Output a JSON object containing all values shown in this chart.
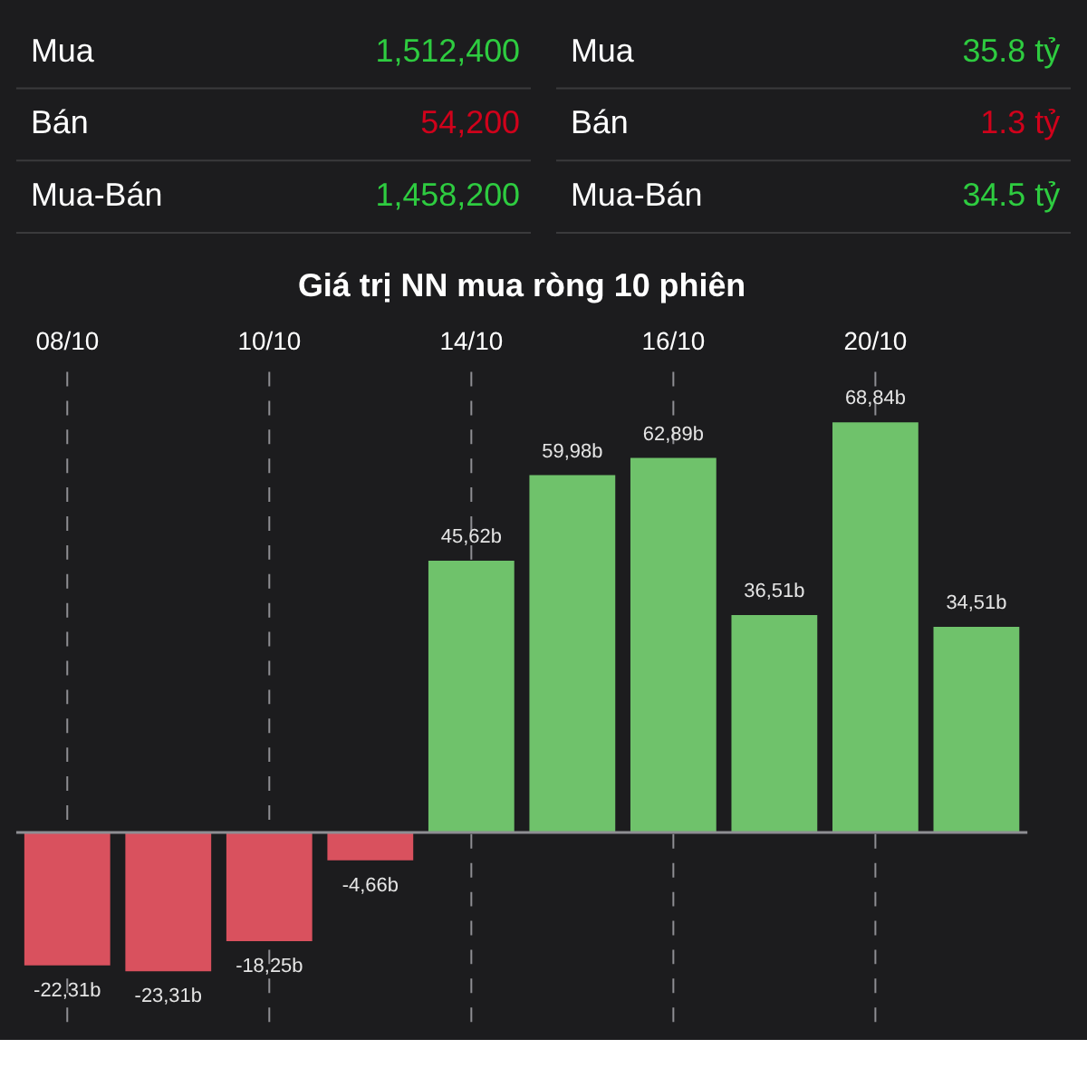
{
  "chart_data": [
    {
      "type": "other",
      "categories": [
        "Mua",
        "Bán",
        "Mua-Bán"
      ],
      "value_labels": [
        "1,512,400",
        "54,200",
        "1,458,200"
      ],
      "colors": [
        "#2ecc40",
        "#d0021b",
        "#2ecc40"
      ]
    },
    {
      "type": "other",
      "categories": [
        "Mua",
        "Bán",
        "Mua-Bán"
      ],
      "value_labels": [
        "35.8 tỷ",
        "1.3 tỷ",
        "34.5 tỷ"
      ],
      "colors": [
        "#2ecc40",
        "#d0021b",
        "#2ecc40"
      ]
    },
    {
      "type": "bar",
      "title": "Giá trị NN mua ròng 10 phiên",
      "categories": [
        "08/10",
        null,
        "10/10",
        null,
        "14/10",
        null,
        "16/10",
        null,
        "20/10",
        null
      ],
      "values": [
        -22.31,
        -23.31,
        -18.25,
        -4.66,
        45.62,
        59.98,
        62.89,
        36.51,
        68.84,
        34.51
      ],
      "value_labels": [
        "-22,31b",
        "-23,31b",
        "-18,25b",
        "-4,66b",
        "45,62b",
        "59,98b",
        "62,89b",
        "36,51b",
        "68,84b",
        "34,51b"
      ],
      "colors": [
        "#d9515e",
        "#d9515e",
        "#d9515e",
        "#d9515e",
        "#6fc26b",
        "#6fc26b",
        "#6fc26b",
        "#6fc26b",
        "#6fc26b",
        "#6fc26b"
      ],
      "grid": "x"
    }
  ]
}
